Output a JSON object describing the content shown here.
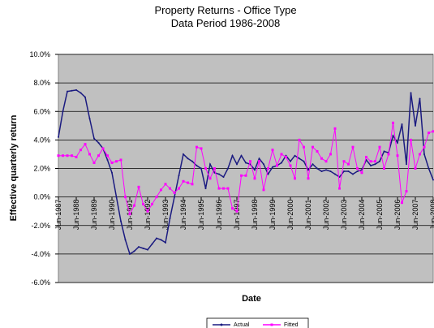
{
  "chart_data": {
    "type": "line",
    "title": "Property Returns - Office Type",
    "subtitle": "Data Period 1986-2008",
    "x_label": "Date",
    "y_label": "Effective quarterly return",
    "categories": [
      "Jun-1987",
      null,
      null,
      null,
      "Jun-1988",
      null,
      null,
      null,
      "Jun-1989",
      null,
      null,
      null,
      "Jun-1990",
      null,
      null,
      null,
      "Jun-1991",
      null,
      null,
      null,
      "Jun-1992",
      null,
      null,
      null,
      "Jun-1993",
      null,
      null,
      null,
      "Jun-1994",
      null,
      null,
      null,
      "Jun-1995",
      null,
      null,
      null,
      "Jun-1996",
      null,
      null,
      null,
      "Jun-1997",
      null,
      null,
      null,
      "Jun-1998",
      null,
      null,
      null,
      "Jun-1999",
      null,
      null,
      null,
      "Jun-2000",
      null,
      null,
      null,
      "Jun-2001",
      null,
      null,
      null,
      "Jun-2002",
      null,
      null,
      null,
      "Jun-2003",
      null,
      null,
      null,
      "Jun-2004",
      null,
      null,
      null,
      "Jun-2005",
      null,
      null,
      null,
      "Jun-2006",
      null,
      null,
      null,
      "Jun-2007",
      null,
      null,
      null,
      "Jun-2008"
    ],
    "series": [
      {
        "name": "Actual",
        "color": "#1a1a80",
        "values": [
          4.2,
          6.0,
          7.4,
          7.45,
          7.5,
          7.3,
          7.0,
          5.5,
          4.1,
          3.8,
          3.4,
          2.6,
          1.7,
          0,
          -1.7,
          -3.0,
          -4.0,
          -3.8,
          -3.5,
          -3.6,
          -3.7,
          -3.3,
          -2.9,
          -3.0,
          -3.2,
          -1.5,
          0,
          1.5,
          3.0,
          2.7,
          2.5,
          2.2,
          2.0,
          0.6,
          2.3,
          1.7,
          1.6,
          1.4,
          2.0,
          2.9,
          2.3,
          2.9,
          2.4,
          2.3,
          1.9,
          2.7,
          2.3,
          1.6,
          2.1,
          2.2,
          2.4,
          2.9,
          2.5,
          2.9,
          2.7,
          2.5,
          1.9,
          2.3,
          2.0,
          1.8,
          1.9,
          1.8,
          1.6,
          1.4,
          1.8,
          1.8,
          1.6,
          1.8,
          1.9,
          2.6,
          2.2,
          2.3,
          2.5,
          3.2,
          3.1,
          4.3,
          3.8,
          5.1,
          2.3,
          7.3,
          5.0,
          6.9,
          3.0,
          2.0,
          1.2
        ]
      },
      {
        "name": "Fitted",
        "color": "#ff00ff",
        "values": [
          2.9,
          2.9,
          2.9,
          2.9,
          2.8,
          3.3,
          3.7,
          3.0,
          2.4,
          2.9,
          3.4,
          2.9,
          2.4,
          2.5,
          2.6,
          0,
          -1.2,
          -0.6,
          0.7,
          -0.5,
          -1.0,
          -0.5,
          0,
          0.5,
          0.9,
          0.6,
          0.3,
          0.6,
          1.1,
          1.0,
          0.9,
          3.5,
          3.4,
          2.0,
          1.3,
          2.0,
          0.6,
          0.6,
          0.6,
          -0.8,
          -1.0,
          1.5,
          1.5,
          2.5,
          1.3,
          2.5,
          0.5,
          2.0,
          3.3,
          2.2,
          3.0,
          2.8,
          2.2,
          1.3,
          4.0,
          3.5,
          1.3,
          3.5,
          3.2,
          2.7,
          2.5,
          3.0,
          4.8,
          0.6,
          2.5,
          2.3,
          3.5,
          2.0,
          1.7,
          2.8,
          2.5,
          2.5,
          3.5,
          2.0,
          3.0,
          5.2,
          2.9,
          -0.4,
          0.4,
          4.0,
          2.0,
          3.0,
          3.5,
          4.5,
          4.6
        ]
      }
    ],
    "ylim": [
      -6,
      10
    ],
    "yticks": [
      {
        "value": -6,
        "label": "-6.0%"
      },
      {
        "value": -4,
        "label": "-4.0%"
      },
      {
        "value": -2,
        "label": "-2.0%"
      },
      {
        "value": 0,
        "label": "0.0%"
      },
      {
        "value": 2,
        "label": "2.0%"
      },
      {
        "value": 4,
        "label": "4.0%"
      },
      {
        "value": 6,
        "label": "6.0%"
      },
      {
        "value": 8,
        "label": "8.0%"
      },
      {
        "value": 10,
        "label": "10.0%"
      }
    ],
    "grid": true,
    "legend": "bottom",
    "plot_background": "#c0c0c0"
  }
}
